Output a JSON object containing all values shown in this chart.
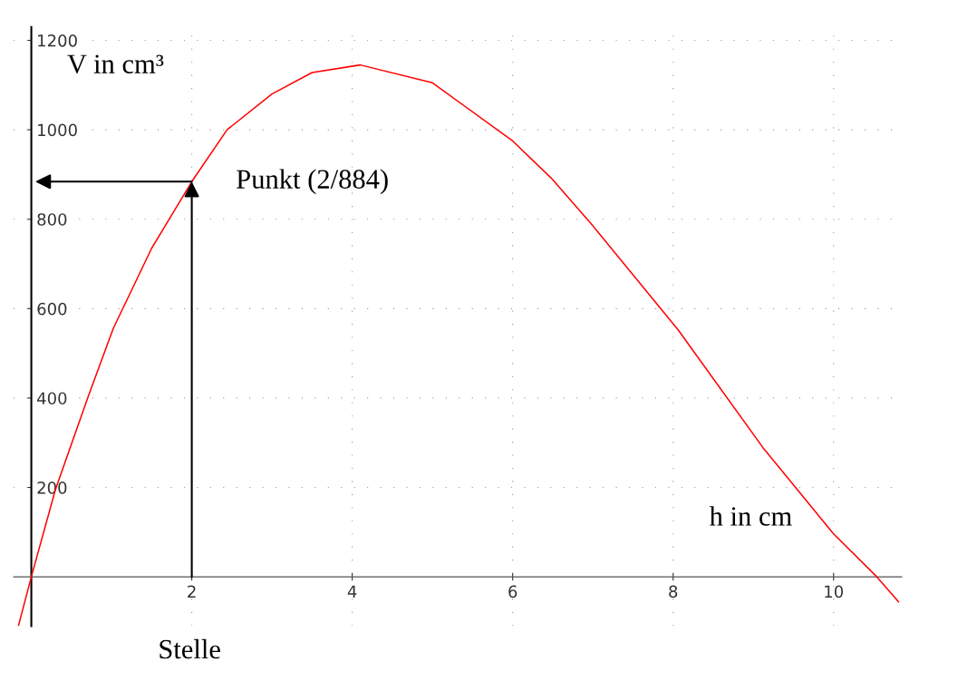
{
  "chart_data": {
    "type": "line",
    "xlabel": "h in cm",
    "ylabel": "V in cm³",
    "x": [
      -0.16,
      0,
      0.3,
      0.71,
      1.02,
      1.5,
      2,
      2.44,
      3,
      3.5,
      4.1,
      5,
      6,
      6.48,
      7,
      8.06,
      9.12,
      10,
      10.54,
      10.81
    ],
    "series": [
      {
        "color": "#ff0000",
        "values": [
          -109,
          0,
          195,
          404,
          555,
          735,
          884,
          1000,
          1080,
          1128,
          1145,
          1105,
          975,
          892,
          785,
          553,
          289,
          96,
          0,
          -56
        ]
      }
    ],
    "xlim": [
      -0.22,
      10.85
    ],
    "ylim": [
      -110,
      1230
    ],
    "xticks": [
      2,
      4,
      6,
      8,
      10
    ],
    "yticks": [
      200,
      400,
      600,
      800,
      1000,
      1200
    ],
    "grid": true,
    "marker": "none",
    "line_style": "solid",
    "annotations": [
      {
        "text": "Punkt (2/884)",
        "x": 2,
        "y": 884
      },
      "Stelle"
    ]
  }
}
